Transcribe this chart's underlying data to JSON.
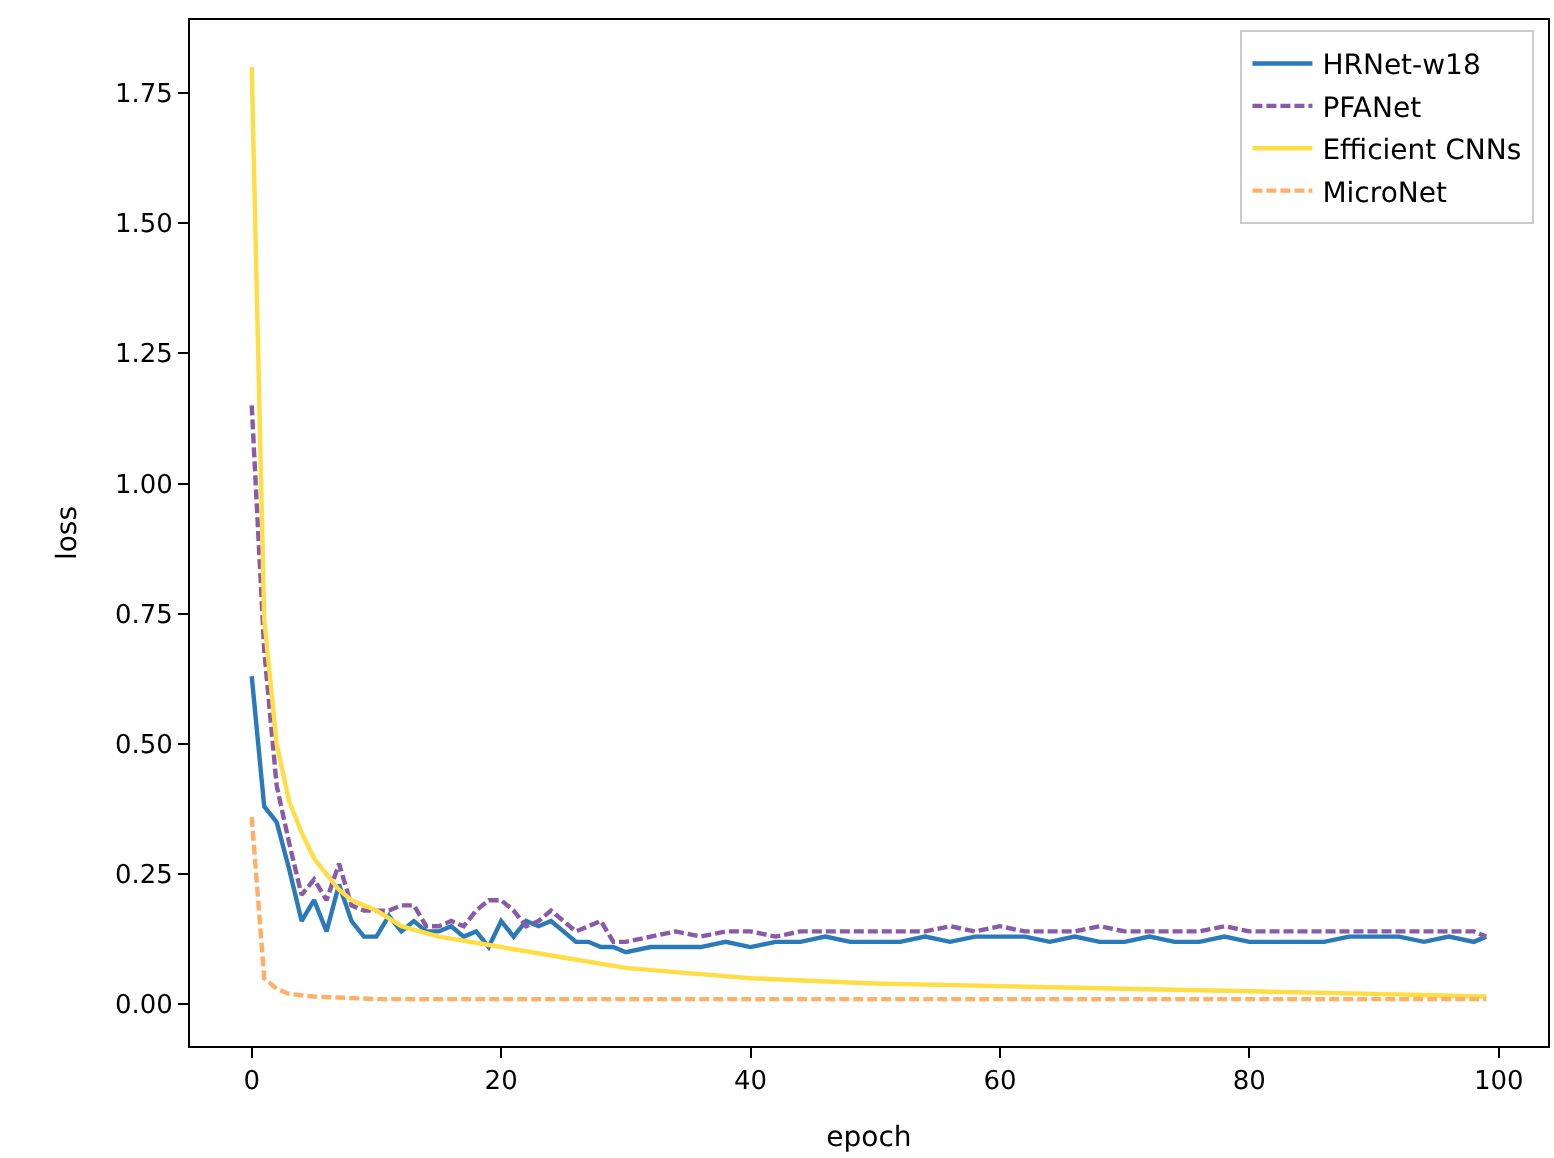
{
  "chart_data": {
    "type": "line",
    "xlabel": "epoch",
    "ylabel": "loss",
    "xlim": [
      -4.95,
      103.95
    ],
    "ylim": [
      -0.08,
      1.89
    ],
    "xticks": [
      0,
      20,
      40,
      60,
      80,
      100
    ],
    "yticks": [
      {
        "value": 0,
        "label": "0.00"
      },
      {
        "value": 0.25,
        "label": "0.25"
      },
      {
        "value": 0.5,
        "label": "0.50"
      },
      {
        "value": 0.75,
        "label": "0.75"
      },
      {
        "value": 1,
        "label": "1.00"
      },
      {
        "value": 1.25,
        "label": "1.25"
      },
      {
        "value": 1.5,
        "label": "1.50"
      },
      {
        "value": 1.75,
        "label": "1.75"
      }
    ],
    "legend": "top right",
    "series": [
      {
        "name": "HRNet-w18",
        "color": "#2a7ab9",
        "line_style": "solid",
        "x": [
          0,
          1,
          2,
          3,
          4,
          5,
          6,
          7,
          8,
          9,
          10,
          11,
          12,
          13,
          14,
          15,
          16,
          17,
          18,
          19,
          20,
          21,
          22,
          23,
          24,
          25,
          26,
          27,
          28,
          29,
          30,
          32,
          34,
          36,
          38,
          40,
          42,
          44,
          46,
          48,
          50,
          52,
          54,
          56,
          58,
          60,
          62,
          64,
          66,
          68,
          70,
          72,
          74,
          76,
          78,
          80,
          82,
          84,
          86,
          88,
          90,
          92,
          94,
          96,
          98,
          99
        ],
        "values": [
          0.63,
          0.38,
          0.35,
          0.26,
          0.16,
          0.2,
          0.14,
          0.23,
          0.16,
          0.13,
          0.13,
          0.17,
          0.14,
          0.16,
          0.14,
          0.14,
          0.15,
          0.13,
          0.14,
          0.11,
          0.16,
          0.13,
          0.16,
          0.15,
          0.16,
          0.14,
          0.12,
          0.12,
          0.11,
          0.11,
          0.1,
          0.11,
          0.11,
          0.11,
          0.12,
          0.11,
          0.12,
          0.12,
          0.13,
          0.12,
          0.12,
          0.12,
          0.13,
          0.12,
          0.13,
          0.13,
          0.13,
          0.12,
          0.13,
          0.12,
          0.12,
          0.13,
          0.12,
          0.12,
          0.13,
          0.12,
          0.12,
          0.12,
          0.12,
          0.13,
          0.13,
          0.13,
          0.12,
          0.13,
          0.12,
          0.13
        ]
      },
      {
        "name": "PFANet",
        "color": "#8a5aaa",
        "line_style": "dashed",
        "x": [
          0,
          1,
          2,
          3,
          4,
          5,
          6,
          7,
          8,
          9,
          10,
          11,
          12,
          13,
          14,
          15,
          16,
          17,
          18,
          19,
          20,
          21,
          22,
          23,
          24,
          25,
          26,
          27,
          28,
          29,
          30,
          32,
          34,
          36,
          38,
          40,
          42,
          44,
          46,
          48,
          50,
          52,
          54,
          56,
          58,
          60,
          62,
          64,
          66,
          68,
          70,
          72,
          74,
          76,
          78,
          80,
          82,
          84,
          86,
          88,
          90,
          92,
          94,
          96,
          98,
          99
        ],
        "values": [
          1.15,
          0.68,
          0.42,
          0.31,
          0.21,
          0.24,
          0.2,
          0.27,
          0.19,
          0.18,
          0.18,
          0.18,
          0.19,
          0.19,
          0.15,
          0.15,
          0.16,
          0.15,
          0.18,
          0.2,
          0.2,
          0.18,
          0.15,
          0.16,
          0.18,
          0.16,
          0.14,
          0.15,
          0.16,
          0.12,
          0.12,
          0.13,
          0.14,
          0.13,
          0.14,
          0.14,
          0.13,
          0.14,
          0.14,
          0.14,
          0.14,
          0.14,
          0.14,
          0.15,
          0.14,
          0.15,
          0.14,
          0.14,
          0.14,
          0.15,
          0.14,
          0.14,
          0.14,
          0.14,
          0.15,
          0.14,
          0.14,
          0.14,
          0.14,
          0.14,
          0.14,
          0.14,
          0.14,
          0.14,
          0.14,
          0.13
        ]
      },
      {
        "name": "Efficient CNNs",
        "color": "#ffdd44",
        "line_style": "solid",
        "x": [
          0,
          1,
          2,
          3,
          4,
          5,
          6,
          7,
          8,
          9,
          10,
          12,
          15,
          20,
          25,
          30,
          35,
          40,
          50,
          60,
          70,
          80,
          90,
          99
        ],
        "values": [
          1.8,
          0.74,
          0.5,
          0.39,
          0.33,
          0.28,
          0.25,
          0.22,
          0.2,
          0.19,
          0.18,
          0.15,
          0.13,
          0.11,
          0.09,
          0.07,
          0.06,
          0.05,
          0.04,
          0.035,
          0.03,
          0.025,
          0.02,
          0.015
        ]
      },
      {
        "name": "MicroNet",
        "color": "#ffb066",
        "line_style": "dashed",
        "x": [
          0,
          1,
          2,
          3,
          5,
          10,
          20,
          40,
          60,
          80,
          99
        ],
        "values": [
          0.36,
          0.05,
          0.03,
          0.02,
          0.015,
          0.01,
          0.01,
          0.01,
          0.01,
          0.01,
          0.01
        ]
      }
    ]
  }
}
